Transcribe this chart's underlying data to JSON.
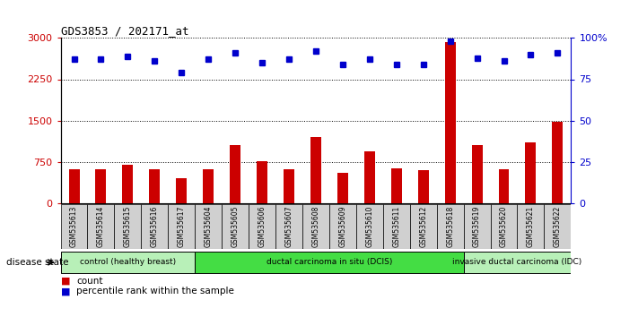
{
  "title": "GDS3853 / 202171_at",
  "samples": [
    "GSM535613",
    "GSM535614",
    "GSM535615",
    "GSM535616",
    "GSM535617",
    "GSM535604",
    "GSM535605",
    "GSM535606",
    "GSM535607",
    "GSM535608",
    "GSM535609",
    "GSM535610",
    "GSM535611",
    "GSM535612",
    "GSM535618",
    "GSM535619",
    "GSM535620",
    "GSM535621",
    "GSM535622"
  ],
  "counts": [
    620,
    620,
    700,
    620,
    450,
    620,
    1050,
    760,
    620,
    1200,
    540,
    930,
    630,
    600,
    2920,
    1050,
    620,
    1100,
    1480
  ],
  "percentiles": [
    87,
    87,
    89,
    86,
    79,
    87,
    91,
    85,
    87,
    92,
    84,
    87,
    84,
    84,
    98,
    88,
    86,
    90,
    91
  ],
  "groups": [
    {
      "label": "control (healthy breast)",
      "start": 0,
      "end": 5,
      "color": "#b8f0b8"
    },
    {
      "label": "ductal carcinoma in situ (DCIS)",
      "start": 5,
      "end": 15,
      "color": "#44dd44"
    },
    {
      "label": "invasive ductal carcinoma (IDC)",
      "start": 15,
      "end": 19,
      "color": "#b8f0b8"
    }
  ],
  "ylim_left": [
    0,
    3000
  ],
  "ylim_right": [
    0,
    100
  ],
  "yticks_left": [
    0,
    750,
    1500,
    2250,
    3000
  ],
  "yticks_right": [
    0,
    25,
    50,
    75,
    100
  ],
  "bar_color": "#cc0000",
  "dot_color": "#0000cc",
  "bg_color": "#ffffff",
  "tick_box_color": "#d0d0d0",
  "label_count": "count",
  "label_percentile": "percentile rank within the sample",
  "disease_state_label": "disease state"
}
